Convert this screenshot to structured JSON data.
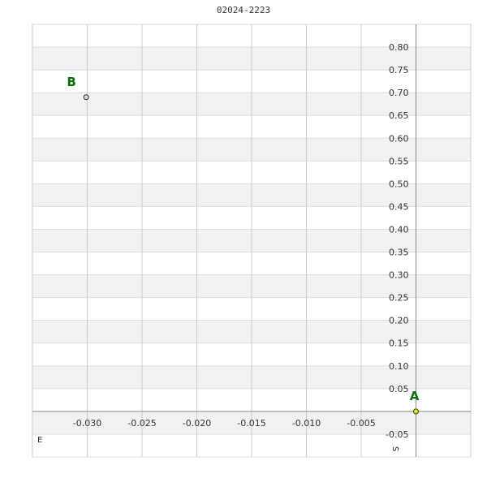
{
  "chart_data": {
    "type": "scatter",
    "title": "02024-2223",
    "xlabel": "E",
    "ylabel": "S",
    "xlim": [
      -0.035,
      0.005
    ],
    "ylim": [
      -0.1,
      0.85
    ],
    "grid": true,
    "xticks": [
      -0.03,
      -0.025,
      -0.02,
      -0.015,
      -0.01,
      -0.005
    ],
    "xtick_labels": [
      "-0.030",
      "-0.025",
      "-0.020",
      "-0.015",
      "-0.010",
      "-0.005"
    ],
    "yticks": [
      -0.05,
      0.05,
      0.1,
      0.15,
      0.2,
      0.25,
      0.3,
      0.35,
      0.4,
      0.45,
      0.5,
      0.55,
      0.6,
      0.65,
      0.7,
      0.75,
      0.8
    ],
    "ytick_labels": [
      "-0.05",
      "0.05",
      "0.10",
      "0.15",
      "0.20",
      "0.25",
      "0.30",
      "0.35",
      "0.40",
      "0.45",
      "0.50",
      "0.55",
      "0.60",
      "0.65",
      "0.70",
      "0.75",
      "0.80"
    ],
    "points": [
      {
        "label": "A",
        "x": 0.0,
        "y": 0.0,
        "color": "#f2e600"
      },
      {
        "label": "B",
        "x": -0.0301,
        "y": 0.69,
        "color": "#d8d8d8"
      }
    ],
    "label_color": "#0a6e0a"
  }
}
